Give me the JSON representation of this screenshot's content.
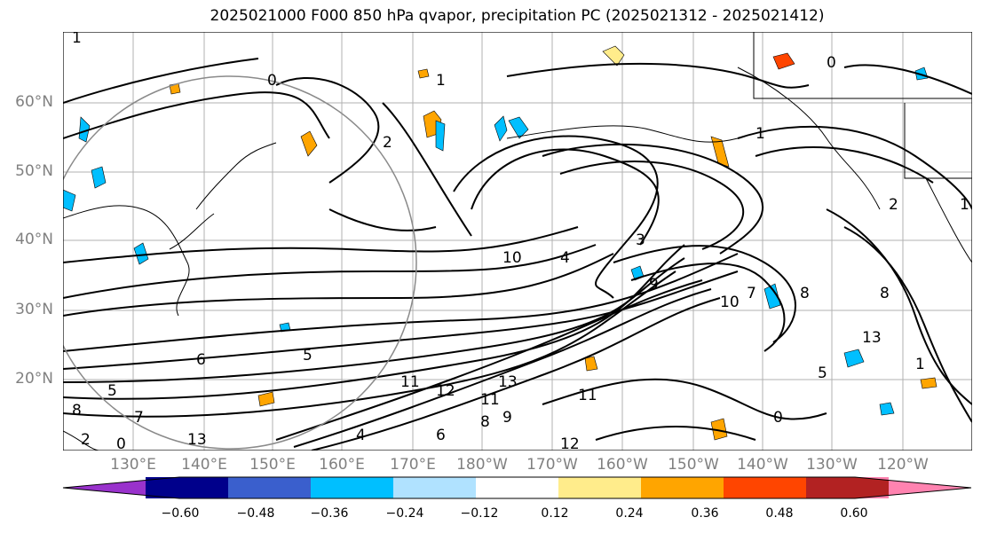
{
  "title": "2025021000 F000 850 hPa qvapor, precipitation PC (2025021312 - 2025021412)",
  "lat_labels": [
    "60°N",
    "50°N",
    "40°N",
    "30°N",
    "20°N"
  ],
  "lon_labels": [
    "130°E",
    "140°E",
    "150°E",
    "160°E",
    "170°E",
    "180°W",
    "170°W",
    "160°W",
    "150°W",
    "140°W",
    "130°W",
    "120°W"
  ],
  "colorbar": {
    "tick_labels": [
      "−0.60",
      "−0.48",
      "−0.36",
      "−0.24",
      "−0.12",
      "0.12",
      "0.24",
      "0.36",
      "0.48",
      "0.60"
    ],
    "colors": [
      "#9932cc",
      "#00008b",
      "#3a5fcd",
      "#00bfff",
      "#b0e2ff",
      "#ffffff",
      "#ffec8b",
      "#ffa500",
      "#ff4500",
      "#b22222",
      "#ff83b0"
    ]
  },
  "contour_labels": [
    "1",
    "0",
    "1",
    "2",
    "1",
    "0",
    "1",
    "2",
    "3",
    "4",
    "5",
    "6",
    "7",
    "8",
    "9",
    "10",
    "11",
    "12",
    "13",
    "4",
    "5",
    "7",
    "8",
    "9",
    "11",
    "10",
    "8",
    "13",
    "6",
    "5",
    "8",
    "11",
    "12",
    "13",
    "2",
    "0",
    "1",
    "0"
  ],
  "colors": {
    "land_outline": "#000000",
    "grid": "#b0b0b0",
    "contour": "#000000",
    "range_circle": "#8a8a8a"
  }
}
